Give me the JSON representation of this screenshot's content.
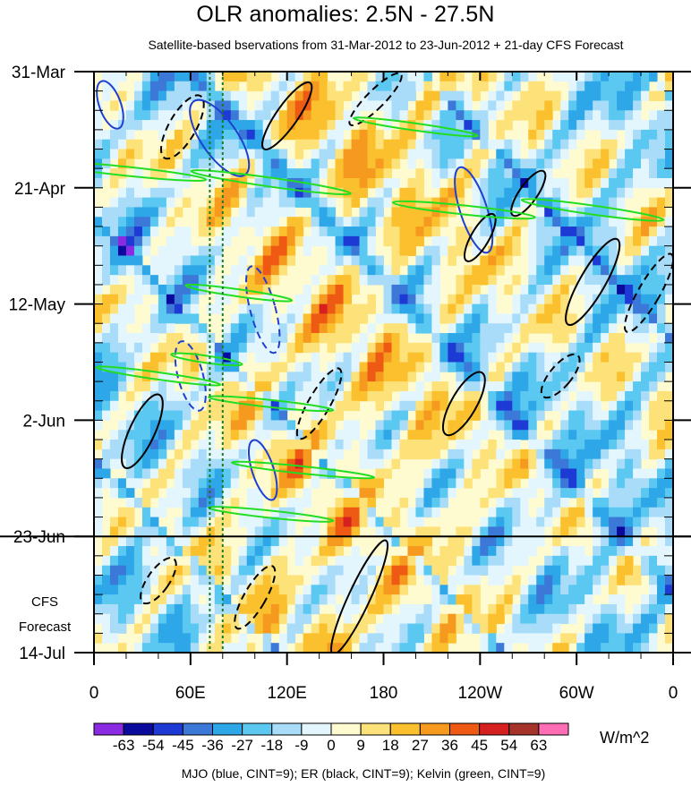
{
  "chart_data": {
    "type": "heatmap",
    "title": "OLR anomalies: 2.5N - 27.5N",
    "subtitle": "Satellite-based bservations from 31-Mar-2012 to 23-Jun-2012 + 21-day CFS Forecast",
    "x_ticks": [
      "0",
      "60E",
      "120E",
      "180",
      "120W",
      "60W",
      "0"
    ],
    "x_tick_lon": [
      0,
      60,
      120,
      180,
      240,
      300,
      360
    ],
    "y_ticks": [
      "31-Mar",
      "21-Apr",
      "12-May",
      "2-Jun",
      "23-Jun",
      "14-Jul"
    ],
    "y_tick_day": [
      0,
      21,
      42,
      63,
      84,
      105
    ],
    "forecast_label_line1": "CFS",
    "forecast_label_line2": "Forecast",
    "observation_end_day": 84,
    "vertical_markers_lon": [
      72,
      80
    ],
    "colorbar": {
      "labels": [
        "-63",
        "-54",
        "-45",
        "-36",
        "-27",
        "-18",
        "-9",
        "0",
        "9",
        "18",
        "27",
        "36",
        "45",
        "54",
        "63"
      ],
      "colors": [
        "#8a2be2",
        "#0a0a9c",
        "#1e3ad4",
        "#3c78d8",
        "#2ea7e8",
        "#5ac8f0",
        "#a8dcf8",
        "#e4f6fd",
        "#fffbd0",
        "#fde27a",
        "#fbc02d",
        "#f59a1e",
        "#ee5a14",
        "#d61f1f",
        "#a5332a",
        "#ff6eb4"
      ],
      "units": "W/m^2"
    },
    "legend_text": "MJO (blue, CINT=9); ER (black, CINT=9); Kelvin (green, CINT=9)"
  }
}
